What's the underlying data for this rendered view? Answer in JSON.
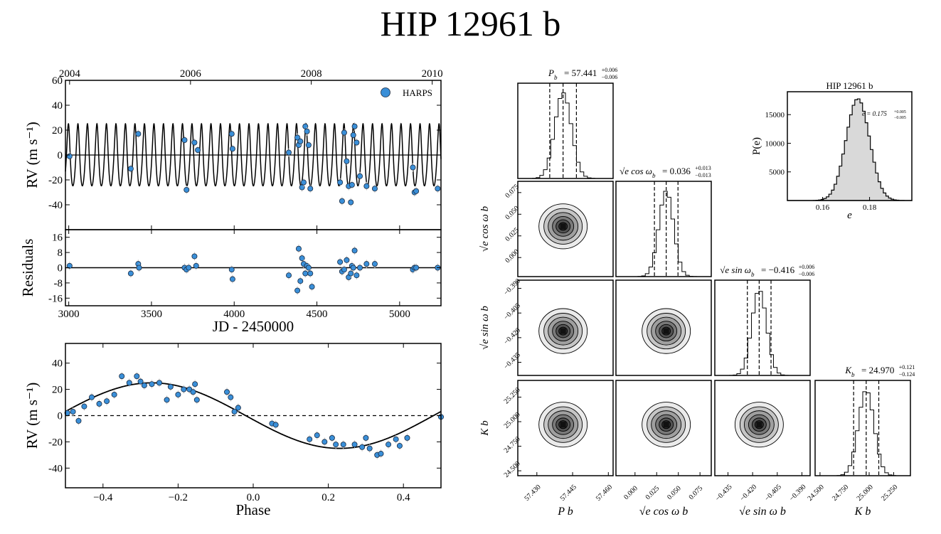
{
  "title": "HIP 12961 b",
  "colors": {
    "point": "#3a8fd8",
    "point_edge": "#1a2a40",
    "curve": "#000000",
    "hist_fill": "#d9d9d9"
  },
  "chart_data": [
    {
      "id": "rv_time",
      "type": "line",
      "xlim": [
        2980,
        5250
      ],
      "ylim": [
        -60,
        60
      ],
      "ylabel": "RV (m s⁻¹)",
      "yticks": [
        -40,
        -20,
        0,
        20,
        40,
        60
      ],
      "top_axis": {
        "ticks": [
          2004,
          2006,
          2008,
          2010
        ],
        "jd": [
          3005,
          3736,
          4466,
          5197
        ]
      },
      "legend": "HARPS",
      "model": {
        "K": 24.97,
        "P": 57.441,
        "e": 0.175,
        "offset": -4
      },
      "points_x": [
        3005,
        3375,
        3420,
        3700,
        3712,
        3760,
        3780,
        3985,
        3990,
        4330,
        4382,
        4390,
        4400,
        4410,
        4420,
        4430,
        4440,
        4450,
        4460,
        4640,
        4652,
        4665,
        4680,
        4692,
        4705,
        4712,
        4720,
        4728,
        4740,
        4760,
        4800,
        4850,
        5080,
        5090,
        5100,
        5230
      ],
      "points_y": [
        -1,
        -11,
        17,
        12,
        -28,
        10,
        4,
        17,
        5,
        2,
        14,
        8,
        11,
        -26,
        -22,
        23,
        19,
        8,
        -27,
        -22,
        -37,
        18,
        -5,
        -25,
        -38,
        -24,
        16,
        23,
        10,
        -17,
        -25,
        -27,
        -10,
        -30,
        -29,
        -27
      ]
    },
    {
      "id": "residuals",
      "type": "scatter",
      "xlim": [
        2980,
        5250
      ],
      "ylim": [
        -20,
        20
      ],
      "ylabel": "Residuals",
      "xlabel": "JD - 2450000",
      "xticks": [
        3000,
        3500,
        4000,
        4500,
        5000
      ],
      "yticks": [
        -16,
        -8,
        0,
        8,
        16
      ],
      "points_x": [
        3005,
        3375,
        3420,
        3425,
        3700,
        3712,
        3725,
        3760,
        3770,
        3985,
        3990,
        4330,
        4382,
        4390,
        4400,
        4410,
        4420,
        4430,
        4440,
        4450,
        4460,
        4470,
        4640,
        4652,
        4665,
        4680,
        4692,
        4705,
        4712,
        4720,
        4728,
        4740,
        4760,
        4800,
        4850,
        5080,
        5090,
        5100,
        5230
      ],
      "points_y": [
        1,
        -3,
        2,
        0,
        0,
        -1,
        0,
        6,
        1,
        -1,
        -6,
        -4,
        -12,
        10,
        -7,
        5,
        2,
        -3,
        1,
        0,
        -3,
        -10,
        3,
        -2,
        -1,
        4,
        -5,
        -3,
        1,
        0,
        9,
        -4,
        0,
        2,
        2,
        -1,
        0,
        0,
        0
      ]
    },
    {
      "id": "phase",
      "type": "line",
      "xlim": [
        -0.5,
        0.5
      ],
      "ylim": [
        -55,
        55
      ],
      "ylabel": "RV (m s⁻¹)",
      "xlabel": "Phase",
      "xticks": [
        -0.4,
        -0.2,
        0.0,
        0.2,
        0.4
      ],
      "yticks": [
        -40,
        -20,
        0,
        20,
        40
      ],
      "points_x": [
        -0.495,
        -0.48,
        -0.465,
        -0.45,
        -0.43,
        -0.41,
        -0.39,
        -0.37,
        -0.35,
        -0.33,
        -0.31,
        -0.3,
        -0.29,
        -0.27,
        -0.25,
        -0.23,
        -0.22,
        -0.2,
        -0.185,
        -0.17,
        -0.16,
        -0.155,
        -0.15,
        -0.07,
        -0.06,
        -0.05,
        -0.04,
        0.05,
        0.06,
        0.15,
        0.17,
        0.19,
        0.21,
        0.22,
        0.24,
        0.27,
        0.29,
        0.3,
        0.31,
        0.33,
        0.34,
        0.36,
        0.38,
        0.39,
        0.41,
        0.5
      ],
      "points_y": [
        2,
        3,
        -4,
        7,
        14,
        9,
        11,
        16,
        30,
        25,
        30,
        26,
        23,
        24,
        25,
        12,
        22,
        16,
        20,
        20,
        18,
        24,
        12,
        18,
        14,
        3,
        6,
        -6,
        -7,
        -18,
        -15,
        -20,
        -17,
        -22,
        -22,
        -22,
        -24,
        -17,
        -25,
        -30,
        -29,
        -22,
        -18,
        -23,
        -17,
        -1
      ]
    },
    {
      "id": "eccentricity",
      "type": "bar",
      "title": "HIP 12961 b",
      "xlabel": "e",
      "ylabel": "P(e)",
      "xlim": [
        0.145,
        0.198
      ],
      "ylim": [
        0,
        19000
      ],
      "xticks": [
        0.16,
        0.18
      ],
      "yticks": [
        5000,
        10000,
        15000
      ],
      "mean": 0.175,
      "sigma": 0.005,
      "peak": 17800,
      "annotation": "e = 0.175",
      "annotation_sup": "+0.005",
      "annotation_sub": "−0.005"
    },
    {
      "id": "corner",
      "type": "heatmap",
      "params": [
        {
          "key": "Pb",
          "label": "P",
          "sub": "b",
          "value": "57.441",
          "plus": "+0.006",
          "minus": "−0.006",
          "range": [
            57.422,
            57.462
          ],
          "mean": 57.441,
          "sigma": 0.0035,
          "ticks": [
            "57.430",
            "57.445",
            "57.460"
          ],
          "tickvals": [
            57.43,
            57.445,
            57.46
          ]
        },
        {
          "key": "ecos",
          "label": "√e cos ω",
          "sub": "b",
          "value": "0.036",
          "plus": "+0.013",
          "minus": "−0.013",
          "range": [
            -0.022,
            0.088
          ],
          "mean": 0.036,
          "sigma": 0.0085,
          "ticks": [
            "0.000",
            "0.025",
            "0.050",
            "0.075"
          ],
          "tickvals": [
            0.0,
            0.025,
            0.05,
            0.075
          ]
        },
        {
          "key": "esin",
          "label": "√e sin ω",
          "sub": "b",
          "value": "−0.416",
          "plus": "+0.006",
          "minus": "−0.006",
          "range": [
            -0.443,
            -0.385
          ],
          "mean": -0.416,
          "sigma": 0.0045,
          "ticks": [
            "−0.435",
            "−0.420",
            "−0.405",
            "−0.390"
          ],
          "tickvals": [
            -0.435,
            -0.42,
            -0.405,
            -0.39
          ]
        },
        {
          "key": "Kb",
          "label": "K",
          "sub": "b",
          "value": "24.970",
          "plus": "+0.121",
          "minus": "−0.124",
          "range": [
            24.45,
            25.42
          ],
          "mean": 24.97,
          "sigma": 0.08,
          "ticks": [
            "24.500",
            "24.750",
            "25.000",
            "25.250"
          ],
          "tickvals": [
            24.5,
            24.75,
            25.0,
            25.25
          ]
        }
      ]
    }
  ]
}
